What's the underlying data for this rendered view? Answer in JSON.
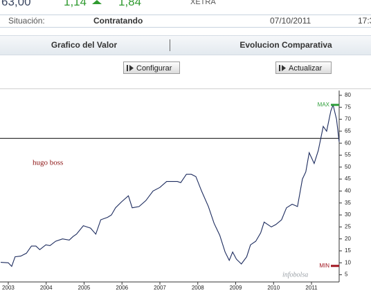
{
  "header": {
    "price": "63,00",
    "change": "1,14",
    "change_pct": "1,84",
    "market": "XETRA"
  },
  "status": {
    "label": "Situación:",
    "state": "Contratando",
    "date": "07/10/2011",
    "time": "17:3"
  },
  "tabs": [
    "Grafico del Valor",
    "Evolucion Comparativa"
  ],
  "buttons": [
    "Configurar",
    "Actualizar"
  ],
  "chart_data": {
    "type": "line",
    "x": [
      2002.8,
      2003.0,
      2003.09,
      2003.18,
      2003.33,
      2003.48,
      2003.61,
      2003.73,
      2003.83,
      2003.99,
      2004.1,
      2004.25,
      2004.43,
      2004.61,
      2004.71,
      2004.8,
      2004.98,
      2005.17,
      2005.31,
      2005.44,
      2005.62,
      2005.72,
      2005.83,
      2005.99,
      2006.17,
      2006.27,
      2006.45,
      2006.63,
      2006.82,
      2007.0,
      2007.18,
      2007.28,
      2007.46,
      2007.55,
      2007.7,
      2007.83,
      2007.95,
      2008.1,
      2008.28,
      2008.43,
      2008.58,
      2008.72,
      2008.83,
      2008.92,
      2009.02,
      2009.15,
      2009.29,
      2009.39,
      2009.53,
      2009.66,
      2009.75,
      2009.94,
      2010.06,
      2010.21,
      2010.34,
      2010.49,
      2010.63,
      2010.76,
      2010.85,
      2010.94,
      2011.07,
      2011.18,
      2011.31,
      2011.4,
      2011.51,
      2011.57,
      2011.66,
      2011.73
    ],
    "series": [
      {
        "name": "hugo boss",
        "color": "#1c2b5e",
        "values": [
          10.2,
          10,
          8.5,
          12.5,
          12.8,
          14,
          17,
          17,
          15.5,
          17.5,
          17.2,
          19,
          20,
          19.5,
          21,
          22,
          25.5,
          24.5,
          22,
          28,
          29,
          30,
          33,
          35.5,
          38,
          33,
          33.5,
          36,
          40,
          41.5,
          44,
          44,
          44,
          43.5,
          47,
          47,
          46,
          40,
          33.5,
          26.5,
          21.5,
          14.5,
          11,
          14.5,
          11.5,
          9.5,
          12.5,
          17.5,
          19,
          22.5,
          27,
          25,
          26,
          28,
          33,
          34.5,
          33.5,
          45,
          48,
          56,
          51.5,
          57,
          67,
          65,
          73.5,
          76,
          70,
          60.5
        ]
      }
    ],
    "xlim": [
      2002.8,
      2011.73
    ],
    "xticks": [
      2003,
      2004,
      2005,
      2006,
      2007,
      2008,
      2009,
      2010,
      2011
    ],
    "ylim": [
      2,
      82
    ],
    "yticks": [
      5,
      10,
      15,
      20,
      25,
      30,
      35,
      40,
      45,
      50,
      55,
      60,
      65,
      70,
      75,
      80
    ],
    "reference_line": 62,
    "max": {
      "label": "MAX",
      "value": 76,
      "color": "#2e9e3a"
    },
    "min": {
      "label": "MIN",
      "value": 8.7,
      "color": "#a0141e"
    },
    "watermark": "infobolsa"
  }
}
